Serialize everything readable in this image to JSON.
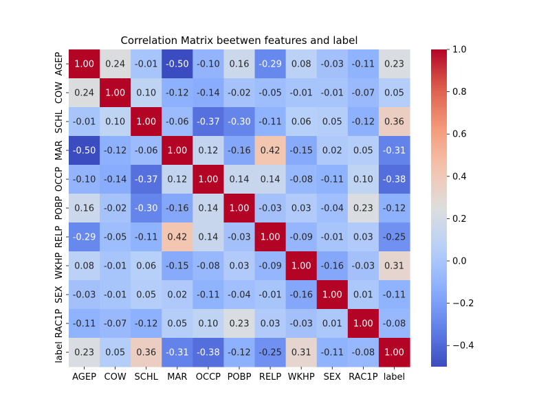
{
  "chart_data": {
    "type": "heatmap",
    "title": "Correlation Matrix beetwen features and label",
    "xlabel": "",
    "ylabel": "",
    "labels": [
      "AGEP",
      "COW",
      "SCHL",
      "MAR",
      "OCCP",
      "POBP",
      "RELP",
      "WKHP",
      "SEX",
      "RAC1P",
      "label"
    ],
    "matrix": [
      [
        1.0,
        0.24,
        -0.01,
        -0.5,
        -0.1,
        0.16,
        -0.29,
        0.08,
        -0.03,
        -0.11,
        0.23
      ],
      [
        0.24,
        1.0,
        0.1,
        -0.12,
        -0.14,
        -0.02,
        -0.05,
        -0.01,
        -0.01,
        -0.07,
        0.05
      ],
      [
        -0.01,
        0.1,
        1.0,
        -0.06,
        -0.37,
        -0.3,
        -0.11,
        0.06,
        0.05,
        -0.12,
        0.36
      ],
      [
        -0.5,
        -0.12,
        -0.06,
        1.0,
        0.12,
        -0.16,
        0.42,
        -0.15,
        0.02,
        0.05,
        -0.31
      ],
      [
        -0.1,
        -0.14,
        -0.37,
        0.12,
        1.0,
        0.14,
        0.14,
        -0.08,
        -0.11,
        0.1,
        -0.38
      ],
      [
        0.16,
        -0.02,
        -0.3,
        -0.16,
        0.14,
        1.0,
        -0.03,
        0.03,
        -0.04,
        0.23,
        -0.12
      ],
      [
        -0.29,
        -0.05,
        -0.11,
        0.42,
        0.14,
        -0.03,
        1.0,
        -0.09,
        -0.01,
        0.03,
        -0.25
      ],
      [
        0.08,
        -0.01,
        0.06,
        -0.15,
        -0.08,
        0.03,
        -0.09,
        1.0,
        -0.16,
        -0.03,
        0.31
      ],
      [
        -0.03,
        -0.01,
        0.05,
        0.02,
        -0.11,
        -0.04,
        -0.01,
        -0.16,
        1.0,
        0.01,
        -0.11
      ],
      [
        -0.11,
        -0.07,
        -0.12,
        0.05,
        0.1,
        0.23,
        0.03,
        -0.03,
        0.01,
        1.0,
        -0.08
      ],
      [
        0.23,
        0.05,
        0.36,
        -0.31,
        -0.38,
        -0.12,
        -0.25,
        0.31,
        -0.11,
        -0.08,
        1.0
      ]
    ],
    "colormap": "coolwarm",
    "vmin": -0.5,
    "vmax": 1.0,
    "colorbar_ticks": [
      -0.4,
      -0.2,
      0.0,
      0.2,
      0.4,
      0.6,
      0.8,
      1.0
    ],
    "colorbar_tick_labels": [
      "−0.4",
      "−0.2",
      "0.0",
      "0.2",
      "0.4",
      "0.6",
      "0.8",
      "1.0"
    ],
    "annotation_format": "2 decimals",
    "legend": "colorbar-right",
    "grid": false
  }
}
